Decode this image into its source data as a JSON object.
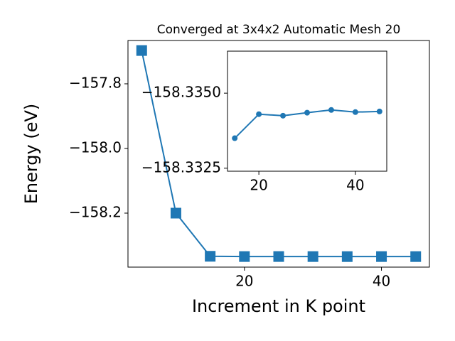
{
  "chart_data": [
    {
      "type": "line",
      "title": "Converged at 3x4x2 Automatic Mesh 20",
      "xlabel": "Increment in K point",
      "ylabel": "Energy (eV)",
      "x": [
        5,
        10,
        15,
        20,
        25,
        30,
        35,
        40,
        45
      ],
      "series": [
        {
          "color": "#1f77b4",
          "marker": "square",
          "values": [
            -157.697,
            -158.2,
            -158.3335,
            -158.3343,
            -158.33425,
            -158.33435,
            -158.33444,
            -158.33437,
            -158.33439
          ]
        }
      ],
      "xlim": [
        3,
        47
      ],
      "ylim": [
        -158.367,
        -157.666
      ],
      "xticks": [
        20,
        40
      ],
      "yticks": [
        {
          "value": -157.8,
          "label": "−157.8"
        },
        {
          "value": -158.0,
          "label": "−158.0"
        },
        {
          "value": -158.2,
          "label": "−158.2"
        }
      ]
    },
    {
      "type": "line",
      "x": [
        15,
        20,
        25,
        30,
        35,
        40,
        45
      ],
      "series": [
        {
          "color": "#1f77b4",
          "marker": "circle",
          "values": [
            -158.3335,
            -158.3343,
            -158.33425,
            -158.33435,
            -158.33444,
            -158.33437,
            -158.33439
          ]
        }
      ],
      "xlim": [
        13.5,
        46.5
      ],
      "ylim": [
        -158.3324,
        -158.3364
      ],
      "xticks": [
        20,
        40
      ],
      "yticks": [
        {
          "value": -158.335,
          "label": "−158.3350"
        },
        {
          "value": -158.3325,
          "label": "−158.3325"
        }
      ]
    }
  ]
}
